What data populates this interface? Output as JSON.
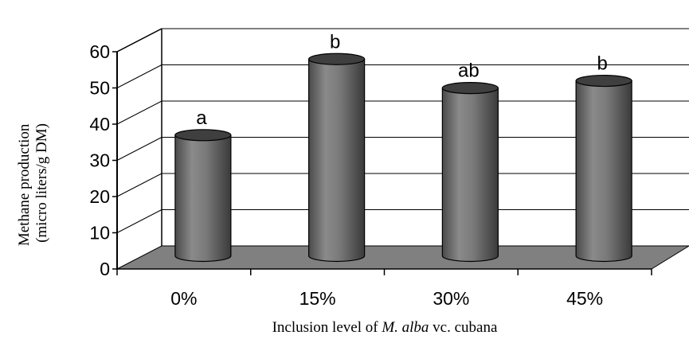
{
  "chart_data": {
    "type": "bar",
    "style": "3d-cylinder",
    "categories": [
      "0%",
      "15%",
      "30%",
      "45%"
    ],
    "values": [
      34,
      55,
      47,
      49
    ],
    "data_labels": [
      "a",
      "b",
      "ab",
      "b"
    ],
    "xlabel_parts": {
      "prefix": "Inclusion level of ",
      "italic": "M. alba",
      "suffix": " vc. cubana"
    },
    "ylabel_lines": [
      "Methane production",
      "(micro liters/g DM)"
    ],
    "ylim": [
      0,
      60
    ],
    "yticks": [
      0,
      10,
      20,
      30,
      40,
      50,
      60
    ],
    "grid": true,
    "legend": "none",
    "colors": {
      "bar": "#707070",
      "bar_dark": "#3f3f3f",
      "bar_light": "#9a9a9a",
      "floor": "#808080",
      "grid": "#000000"
    }
  }
}
